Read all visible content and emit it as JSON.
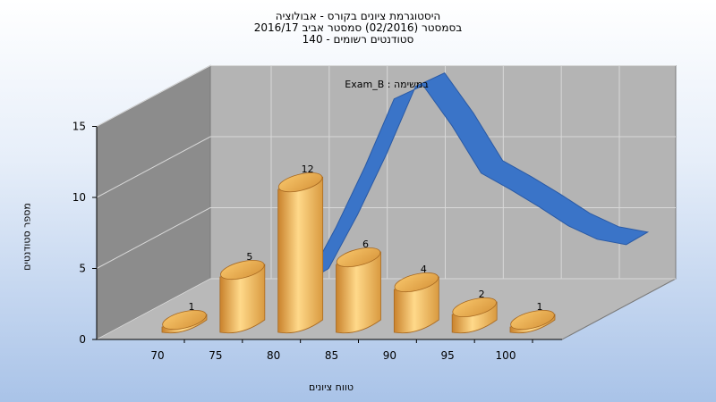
{
  "chart_data": {
    "type": "bar",
    "title_lines": [
      "היסטוגרמת ציונים בקורס - אבולוציה",
      "בסמסטר  (02/2016)  סמסטר אביב 2016/17",
      "סטודנטים רשומים - 140"
    ],
    "annotation": "במשימה : Exam_B",
    "xlabel": "טווח ציונים",
    "ylabel": "מספר סטודנטים",
    "x_ticks": [
      "70",
      "75",
      "80",
      "85",
      "90",
      "95",
      "100"
    ],
    "y_ticks": [
      "0",
      "5",
      "10",
      "15"
    ],
    "ylim": [
      0,
      15
    ],
    "categories": [
      "70",
      "75",
      "80",
      "85",
      "90",
      "95",
      "100"
    ],
    "values": [
      1,
      5,
      12,
      6,
      4,
      2,
      1
    ],
    "bar_labels": [
      "1",
      "5",
      "12",
      "6",
      "4",
      "2",
      "1"
    ],
    "curve_x": [
      77.5,
      80,
      82.5,
      85,
      87.5,
      90,
      92.5,
      95,
      97.5,
      100,
      102.5,
      105
    ],
    "curve_y": [
      0.5,
      4.5,
      9,
      14,
      15,
      12,
      8.5,
      7.3,
      6,
      4.6,
      3.6,
      3.2
    ],
    "grid": true,
    "legend": "none",
    "colors": {
      "bar_light": "#ffd98a",
      "bar_mid": "#f0b050",
      "bar_dark": "#c9822c",
      "curve": "#3a74c8",
      "curve_dark": "#2a5aa5",
      "wall_back": "#b4b4b4",
      "wall_side": "#8c8c8c",
      "floor": "#b9b9b9"
    }
  }
}
